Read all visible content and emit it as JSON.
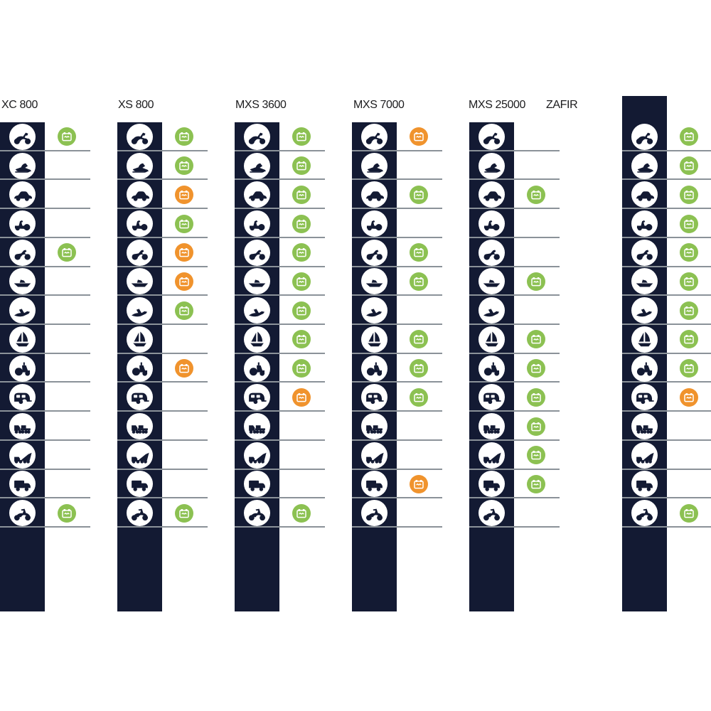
{
  "colors": {
    "bar_navy": "#131a33",
    "compatible_green": "#8CC152",
    "partial_orange": "#F0932D",
    "divider_gray": "#8B9299",
    "header_text": "#1C1C1E",
    "background": "#FFFFFF"
  },
  "vehicles": [
    {
      "name": "motorcycle",
      "icon": "motorcycle-icon"
    },
    {
      "name": "snowmobile",
      "icon": "snowmobile-icon"
    },
    {
      "name": "car",
      "icon": "car-icon"
    },
    {
      "name": "lawn tractor",
      "icon": "lawn-tractor-icon"
    },
    {
      "name": "ATV quad",
      "icon": "atv-quad-icon"
    },
    {
      "name": "motorboat",
      "icon": "motorboat-icon"
    },
    {
      "name": "jet ski",
      "icon": "jet-ski-icon"
    },
    {
      "name": "sailboat",
      "icon": "sailboat-icon"
    },
    {
      "name": "tractor",
      "icon": "tractor-icon"
    },
    {
      "name": "caravan",
      "icon": "caravan-icon"
    },
    {
      "name": "semi trailer truck",
      "icon": "semi-trailer-truck-icon"
    },
    {
      "name": "tipper truck",
      "icon": "tipper-truck-icon"
    },
    {
      "name": "box van",
      "icon": "box-van-icon"
    },
    {
      "name": "moped",
      "icon": "moped-icon"
    }
  ],
  "mark_icon": "battery-icon",
  "chart_data": {
    "type": "table",
    "title": "",
    "columns": [
      "XC 800",
      "XS 800",
      "MXS 3600",
      "MXS 7000",
      "MXS 25000",
      "ZAFIR"
    ],
    "rows": [
      "motorcycle",
      "snowmobile",
      "car",
      "lawn tractor",
      "ATV quad",
      "motorboat",
      "jet ski",
      "sailboat",
      "tractor",
      "caravan",
      "semi trailer truck",
      "tipper truck",
      "box van",
      "moped"
    ],
    "values": [
      [
        "green",
        null,
        null,
        null,
        "green",
        null,
        null,
        null,
        null,
        null,
        null,
        null,
        null,
        "green"
      ],
      [
        "green",
        "green",
        "orange",
        "green",
        "orange",
        "orange",
        "green",
        null,
        "orange",
        null,
        null,
        null,
        null,
        "green"
      ],
      [
        "green",
        "green",
        "green",
        "green",
        "green",
        "green",
        "green",
        "green",
        "green",
        "orange",
        null,
        null,
        null,
        "green"
      ],
      [
        "orange",
        null,
        "green",
        null,
        "green",
        "green",
        null,
        "green",
        "green",
        "green",
        null,
        null,
        "orange",
        null
      ],
      [
        null,
        null,
        "green",
        null,
        null,
        "green",
        null,
        "green",
        "green",
        "green",
        "green",
        "green",
        "green",
        null
      ],
      [
        "green",
        "green",
        "green",
        "green",
        "green",
        "green",
        "green",
        "green",
        "green",
        "orange",
        null,
        null,
        null,
        "green"
      ]
    ],
    "value_meaning": {
      "green": "battery mark (green)",
      "orange": "battery mark (orange)",
      "null": "no mark"
    },
    "legend_position": "none",
    "grid": "row dividers only"
  }
}
